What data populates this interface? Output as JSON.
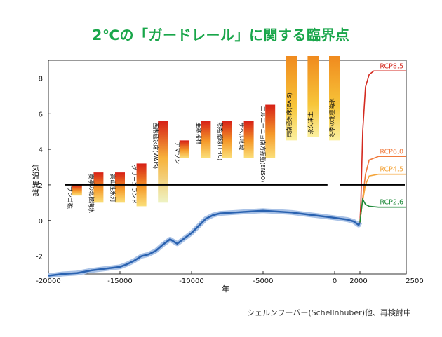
{
  "title": "2℃の「ガードレール」に関する臨界点",
  "caption": "シェルンフーバー(Schellnhuber)他、再検討中",
  "colors": {
    "title": "#19a64a",
    "temperature_line": "#2a62b0",
    "guardrail": "#000000"
  },
  "chart_data": {
    "type": "line",
    "title": "",
    "xlabel": "年",
    "ylabel": "気温異常",
    "xlim": [
      -20000,
      2500
    ],
    "ylim": [
      -3,
      9
    ],
    "x_ticks": [
      -20000,
      -15000,
      -10000,
      -5000,
      0,
      2000,
      2500
    ],
    "x_tick_labels": [
      "-20000",
      "-15000",
      "-10000",
      "-5000",
      "0",
      "2000",
      "2500"
    ],
    "y_ticks": [
      -2,
      0,
      2,
      4,
      6,
      8
    ],
    "y_tick_labels": [
      "-2",
      "0",
      "2",
      "4",
      "6",
      "8"
    ],
    "guardrail": 2,
    "temperature_record": {
      "x": [
        -20000,
        -19000,
        -18000,
        -17000,
        -16000,
        -15000,
        -14500,
        -14000,
        -13500,
        -13000,
        -12500,
        -12000,
        -11500,
        -11000,
        -10500,
        -10000,
        -9500,
        -9000,
        -8500,
        -8000,
        -7000,
        -6000,
        -5000,
        -4000,
        -3000,
        -2000,
        -1000,
        0,
        1000,
        1500,
        1800,
        1900,
        2000
      ],
      "y": [
        -3.1,
        -3.0,
        -2.95,
        -2.8,
        -2.7,
        -2.6,
        -2.45,
        -2.25,
        -2.0,
        -1.9,
        -1.7,
        -1.35,
        -1.05,
        -1.3,
        -1.0,
        -0.7,
        -0.3,
        0.1,
        0.3,
        0.4,
        0.45,
        0.5,
        0.55,
        0.5,
        0.45,
        0.35,
        0.25,
        0.15,
        0.05,
        -0.05,
        -0.2,
        -0.25,
        -0.1
      ]
    },
    "scenarios": [
      {
        "name": "RCP8.5",
        "color": "#d42a20",
        "x": [
          2000,
          2010,
          2030,
          2060,
          2100,
          2150,
          2200,
          2300,
          2500
        ],
        "y": [
          -0.1,
          1.0,
          5.0,
          7.5,
          8.2,
          8.4,
          8.4,
          8.4,
          8.4
        ]
      },
      {
        "name": "RCP6.0",
        "color": "#f07a3c",
        "x": [
          2000,
          2020,
          2060,
          2100,
          2200,
          2500
        ],
        "y": [
          -0.1,
          0.8,
          2.6,
          3.4,
          3.6,
          3.6
        ]
      },
      {
        "name": "RCP4.5",
        "color": "#f4a53b",
        "x": [
          2000,
          2020,
          2060,
          2100,
          2200,
          2500
        ],
        "y": [
          -0.1,
          0.8,
          2.0,
          2.5,
          2.6,
          2.6
        ]
      },
      {
        "name": "RCP2.6",
        "color": "#1f8a3a",
        "x": [
          2000,
          2030,
          2060,
          2100,
          2200,
          2500
        ],
        "y": [
          -0.1,
          1.2,
          0.9,
          0.8,
          0.75,
          0.75
        ]
      }
    ],
    "tipping_points": [
      {
        "label": "サンゴ礁",
        "x": -18000,
        "low": 1.4,
        "high": 2.0
      },
      {
        "label": "夏季の北極海氷",
        "x": -16500,
        "low": 1.0,
        "high": 2.7
      },
      {
        "label": "高山性氷河",
        "x": -15000,
        "low": 1.0,
        "high": 2.7
      },
      {
        "label": "グリーンランド",
        "x": -13500,
        "low": 0.8,
        "high": 3.2
      },
      {
        "label": "西南極氷床(WAIS)",
        "x": -12000,
        "low": 1.0,
        "high": 5.6
      },
      {
        "label": "アマゾン",
        "x": -10500,
        "low": 3.5,
        "high": 4.5
      },
      {
        "label": "亜寒帯林",
        "x": -9000,
        "low": 3.5,
        "high": 5.6
      },
      {
        "label": "熱塩循環(THC)",
        "x": -7500,
        "low": 3.5,
        "high": 5.6
      },
      {
        "label": "サヘル地域",
        "x": -6000,
        "low": 3.5,
        "high": 5.6
      },
      {
        "label": "エルニーニョ南方振動(ENSO)",
        "x": -4500,
        "low": 3.5,
        "high": 6.5
      },
      {
        "label": "東南極氷床(EAIS)",
        "x": -3000,
        "low": 4.5,
        "high": 9.3
      },
      {
        "label": "永久凍土",
        "x": -1500,
        "low": 4.7,
        "high": 9.3
      },
      {
        "label": "冬季の北極海氷",
        "x": 0,
        "low": 4.5,
        "high": 9.3
      }
    ]
  }
}
